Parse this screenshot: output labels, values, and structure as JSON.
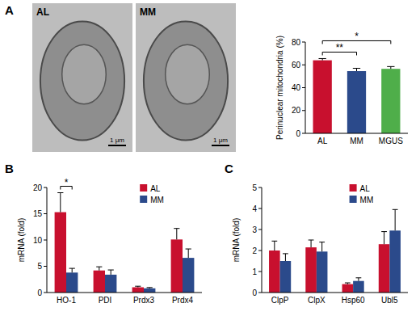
{
  "figure": {
    "panel_labels": [
      "A",
      "B",
      "C"
    ],
    "images": [
      {
        "label": "AL",
        "scale_bar": "1 μm"
      },
      {
        "label": "MM",
        "scale_bar": "1 μm"
      }
    ]
  },
  "chart_data": [
    {
      "type": "bar",
      "y_label": "Perinuclear mitochondria (%)",
      "categories": [
        "AL",
        "MM",
        "MGUS"
      ],
      "values": [
        64,
        54.5,
        56.5
      ],
      "errors": [
        1.5,
        2.5,
        2
      ],
      "colors": [
        "#c8102e",
        "#2b4a8b",
        "#4fae4a"
      ],
      "ylim": [
        0,
        80
      ],
      "yticks": [
        0,
        20,
        40,
        60,
        80
      ],
      "significance": [
        {
          "between": [
            "AL",
            "MM"
          ],
          "label": "**"
        },
        {
          "between": [
            "AL",
            "MGUS"
          ],
          "label": "*"
        }
      ]
    },
    {
      "type": "bar",
      "y_label": "mRNA (fold)",
      "categories": [
        "HO-1",
        "PDI",
        "Prdx3",
        "Prdx4"
      ],
      "series": [
        {
          "name": "AL",
          "color": "#c8102e",
          "values": [
            15.3,
            4.2,
            1.0,
            10.1
          ],
          "errors": [
            3.7,
            0.7,
            0.2,
            2.1
          ]
        },
        {
          "name": "MM",
          "color": "#2b4a8b",
          "values": [
            3.8,
            3.4,
            0.8,
            6.6
          ],
          "errors": [
            0.8,
            0.9,
            0.15,
            1.7
          ]
        }
      ],
      "ylim": [
        0,
        20
      ],
      "yticks": [
        0,
        5,
        10,
        15,
        20
      ],
      "legend": "top-right",
      "significance": [
        {
          "between": [
            "HO-1"
          ],
          "label": "*"
        }
      ]
    },
    {
      "type": "bar",
      "y_label": "mRNA (fold)",
      "categories": [
        "ClpP",
        "ClpX",
        "Hsp60",
        "Ubl5"
      ],
      "series": [
        {
          "name": "AL",
          "color": "#c8102e",
          "values": [
            2.0,
            2.15,
            0.4,
            2.3
          ],
          "errors": [
            0.45,
            0.35,
            0.06,
            0.6
          ]
        },
        {
          "name": "MM",
          "color": "#2b4a8b",
          "values": [
            1.5,
            1.95,
            0.55,
            2.95
          ],
          "errors": [
            0.35,
            0.45,
            0.15,
            1.0
          ]
        }
      ],
      "ylim": [
        0,
        5
      ],
      "yticks": [
        0,
        1,
        2,
        3,
        4,
        5
      ],
      "legend": "top-right"
    }
  ]
}
